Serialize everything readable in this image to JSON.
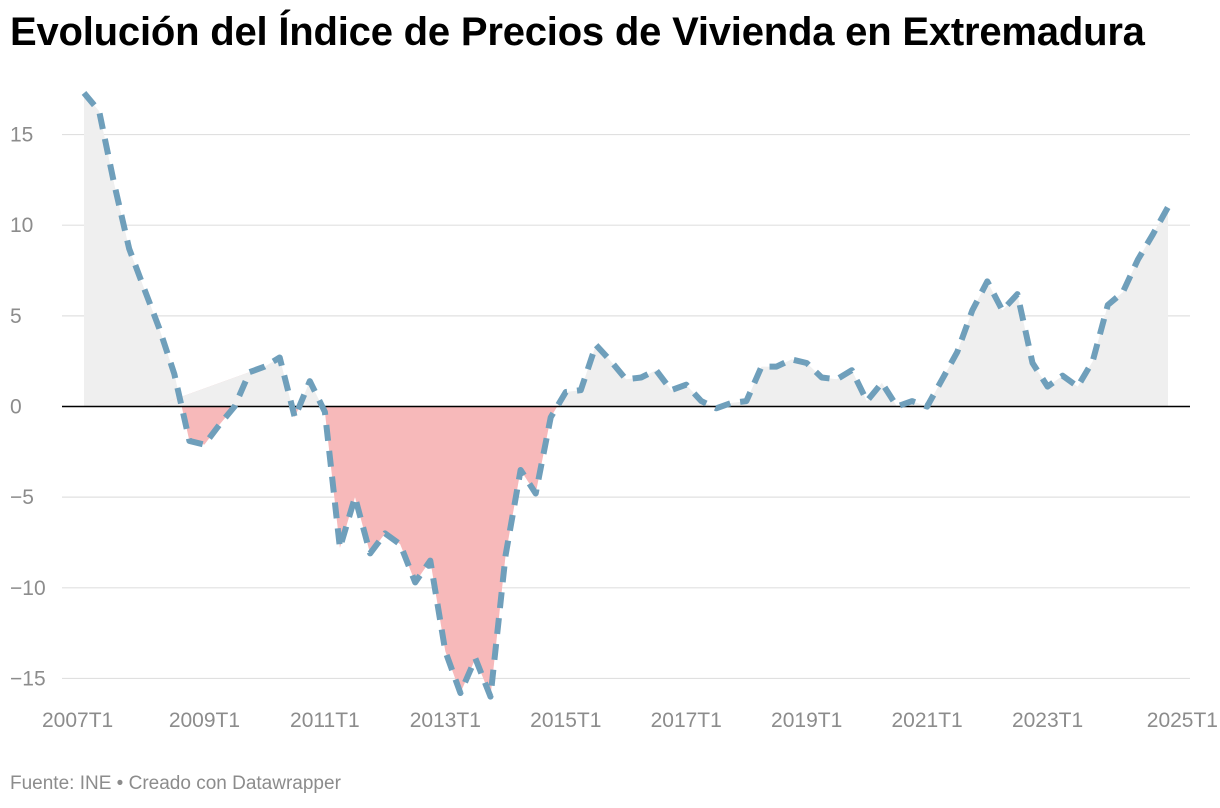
{
  "header": {
    "title": "Evolución del Índice de Precios de Vivienda en Extremadura"
  },
  "footer": {
    "source_label": "Fuente: INE",
    "separator": "•",
    "credit": "Creado con Datawrapper"
  },
  "colors": {
    "line": "#6f9fbb",
    "positive_area": "#efefef",
    "negative_area": "#f7b9ba",
    "gridline": "#e0e0e0",
    "zero_line": "#000000",
    "tick_text": "#8c8c8c"
  },
  "chart_data": {
    "type": "area",
    "title": "Evolución del Índice de Precios de Vivienda en Extremadura",
    "xlabel": "",
    "ylabel": "",
    "line_style": "dashed",
    "fill": "area between line and zero; positive grey, negative red",
    "grid": true,
    "ylim": [
      -16,
      17.5
    ],
    "yticks": [
      15,
      10,
      5,
      0,
      -5,
      -10,
      -15
    ],
    "ytick_labels": [
      "15",
      "10",
      "5",
      "0",
      "−5",
      "−10",
      "−15"
    ],
    "xtick_labels": [
      "2007T1",
      "2009T1",
      "2011T1",
      "2013T1",
      "2015T1",
      "2017T1",
      "2019T1",
      "2021T1",
      "2023T1",
      "2025T1"
    ],
    "x": [
      "2007T1",
      "2007T2",
      "2007T3",
      "2007T4",
      "2008T1",
      "2008T2",
      "2008T3",
      "2008T4",
      "2009T1",
      "2009T2",
      "2009T3",
      "2009T4",
      "2010T1",
      "2010T2",
      "2010T3",
      "2010T4",
      "2011T1",
      "2011T2",
      "2011T3",
      "2011T4",
      "2012T1",
      "2012T2",
      "2012T3",
      "2012T4",
      "2013T1",
      "2013T2",
      "2013T3",
      "2013T4",
      "2014T1",
      "2014T2",
      "2014T3",
      "2014T4",
      "2015T1",
      "2015T2",
      "2015T3",
      "2015T4",
      "2016T1",
      "2016T2",
      "2016T3",
      "2016T4",
      "2017T1",
      "2017T2",
      "2017T3",
      "2017T4",
      "2018T1",
      "2018T2",
      "2018T3",
      "2018T4",
      "2019T1",
      "2019T2",
      "2019T3",
      "2019T4",
      "2020T1",
      "2020T2",
      "2020T3",
      "2020T4",
      "2021T1",
      "2021T2",
      "2021T3",
      "2021T4",
      "2022T1",
      "2022T2",
      "2022T3",
      "2022T4",
      "2023T1",
      "2023T2",
      "2023T3",
      "2023T4",
      "2024T1",
      "2024T2",
      "2024T3",
      "2024T4",
      "2025T1"
    ],
    "values": [
      17.3,
      16.3,
      12.3,
      8.7,
      6.5,
      4.3,
      1.8,
      -1.9,
      -2.1,
      -1.0,
      0.0,
      1.9,
      2.2,
      2.7,
      -0.6,
      1.4,
      -0.3,
      -7.8,
      -5.0,
      -8.1,
      -7.0,
      -7.6,
      -9.7,
      -8.5,
      -13.5,
      -15.8,
      -13.9,
      -16.0,
      -8.2,
      -3.5,
      -4.8,
      -0.6,
      0.8,
      0.9,
      3.4,
      2.5,
      1.5,
      1.6,
      2.0,
      0.9,
      1.2,
      0.3,
      -0.1,
      0.2,
      0.3,
      2.2,
      2.2,
      2.6,
      2.4,
      1.6,
      1.5,
      2.0,
      0.3,
      1.3,
      0.0,
      0.3,
      0.0,
      1.5,
      3.0,
      5.3,
      6.9,
      5.3,
      6.2,
      2.4,
      1.1,
      1.7,
      1.1,
      2.5,
      5.6,
      6.3,
      8.1,
      9.5,
      11.0
    ]
  }
}
